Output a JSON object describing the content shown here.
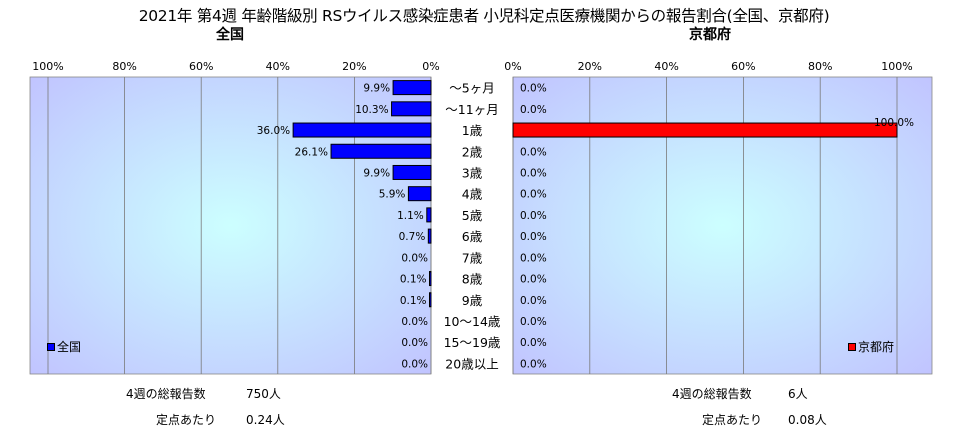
{
  "title": "2021年 第4週 年齢階級別 RSウイルス感染症患者 小児科定点医療機関からの報告割合(全国、京都府)",
  "panels": {
    "left": {
      "label": "全国"
    },
    "right": {
      "label": "京都府"
    }
  },
  "summary": {
    "left": {
      "total_label": "4週の総報告数",
      "total_value": "750人",
      "per_label": "定点あたり",
      "per_value": "0.24人"
    },
    "right": {
      "total_label": "4週の総報告数",
      "total_value": "6人",
      "per_label": "定点あたり",
      "per_value": "0.08人"
    }
  },
  "colors": {
    "left_bar": "#0000ff",
    "right_bar": "#ff0000",
    "plot_bg": "#c0c0ff",
    "plot_bg_inner": "#ccffff"
  },
  "chart_data": [
    {
      "type": "bar",
      "orientation": "horizontal",
      "direction": "reversed",
      "title": "全国",
      "categories": [
        "～5ヶ月",
        "～11ヶ月",
        "1歳",
        "2歳",
        "3歳",
        "4歳",
        "5歳",
        "6歳",
        "7歳",
        "8歳",
        "9歳",
        "10～14歳",
        "15～19歳",
        "20歳以上"
      ],
      "series": [
        {
          "name": "全国",
          "values": [
            9.9,
            10.3,
            36.0,
            26.1,
            9.9,
            5.9,
            1.1,
            0.7,
            0.0,
            0.1,
            0.1,
            0.0,
            0.0,
            0.0
          ]
        }
      ],
      "data_labels": [
        "9.9%",
        "10.3%",
        "36.0%",
        "26.1%",
        "9.9%",
        "5.9%",
        "1.1%",
        "0.7%",
        "0.0%",
        "0.1%",
        "0.1%",
        "0.0%",
        "0.0%",
        "0.0%"
      ],
      "xlim": [
        0,
        100
      ],
      "tick_labels": [
        "100%",
        "80%",
        "60%",
        "40%",
        "20%",
        "0%"
      ],
      "grid": true,
      "legend": "bottom-left"
    },
    {
      "type": "bar",
      "orientation": "horizontal",
      "title": "京都府",
      "categories": [
        "～5ヶ月",
        "～11ヶ月",
        "1歳",
        "2歳",
        "3歳",
        "4歳",
        "5歳",
        "6歳",
        "7歳",
        "8歳",
        "9歳",
        "10～14歳",
        "15～19歳",
        "20歳以上"
      ],
      "series": [
        {
          "name": "京都府",
          "values": [
            0.0,
            0.0,
            100.0,
            0.0,
            0.0,
            0.0,
            0.0,
            0.0,
            0.0,
            0.0,
            0.0,
            0.0,
            0.0,
            0.0
          ]
        }
      ],
      "data_labels": [
        "0.0%",
        "0.0%",
        "100.0%",
        "0.0%",
        "0.0%",
        "0.0%",
        "0.0%",
        "0.0%",
        "0.0%",
        "0.0%",
        "0.0%",
        "0.0%",
        "0.0%",
        "0.0%"
      ],
      "xlim": [
        0,
        100
      ],
      "tick_labels": [
        "0%",
        "20%",
        "40%",
        "60%",
        "80%",
        "100%"
      ],
      "grid": true,
      "legend": "bottom-right"
    }
  ]
}
